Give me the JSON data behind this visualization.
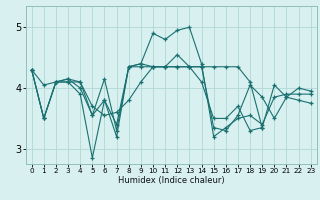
{
  "xlabel": "Humidex (Indice chaleur)",
  "bg_color": "#d8f0f0",
  "grid_color": "#b0d8d4",
  "line_color": "#1a7070",
  "xlim": [
    -0.5,
    23.5
  ],
  "ylim": [
    2.75,
    5.35
  ],
  "yticks": [
    3,
    4,
    5
  ],
  "xticks": [
    0,
    1,
    2,
    3,
    4,
    5,
    6,
    7,
    8,
    9,
    10,
    11,
    12,
    13,
    14,
    15,
    16,
    17,
    18,
    19,
    20,
    21,
    22,
    23
  ],
  "series": [
    [
      4.3,
      3.5,
      4.1,
      4.15,
      4.0,
      3.55,
      3.8,
      3.4,
      4.35,
      4.4,
      4.9,
      4.8,
      4.95,
      5.0,
      4.4,
      3.2,
      3.35,
      3.5,
      3.55,
      3.4,
      3.85,
      3.9,
      3.9,
      3.9
    ],
    [
      4.3,
      3.5,
      4.1,
      4.1,
      4.1,
      3.55,
      4.15,
      3.3,
      4.35,
      4.4,
      4.35,
      4.35,
      4.35,
      4.35,
      4.35,
      4.35,
      4.35,
      4.35,
      4.1,
      3.35,
      4.05,
      3.85,
      4.0,
      3.95
    ],
    [
      4.3,
      3.5,
      4.1,
      4.1,
      3.9,
      2.85,
      3.8,
      3.2,
      4.35,
      4.35,
      4.35,
      4.35,
      4.35,
      4.35,
      4.35,
      3.35,
      3.3,
      3.55,
      4.05,
      3.85,
      3.5,
      3.85,
      3.8,
      3.75
    ],
    [
      4.3,
      4.05,
      4.1,
      4.15,
      4.1,
      3.7,
      3.55,
      3.6,
      3.8,
      4.1,
      4.35,
      4.35,
      4.55,
      4.35,
      4.1,
      3.5,
      3.5,
      3.7,
      3.3,
      3.35,
      null,
      null,
      null,
      null
    ]
  ]
}
